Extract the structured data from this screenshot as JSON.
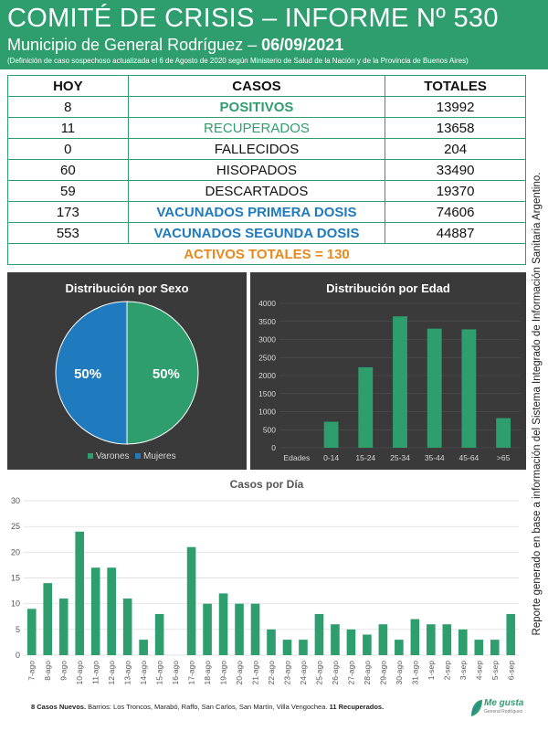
{
  "header": {
    "title": "COMITÉ DE CRISIS – INFORME Nº 530",
    "subtitle_prefix": "Municipio de General Rodríguez – ",
    "date": "06/09/2021",
    "note": "(Definición de caso sospechoso actualizada el 6 de Agosto de 2020 según Ministerio de Salud de la Nación y de la Provincia de Buenos Aires)"
  },
  "table": {
    "headers": [
      "HOY",
      "CASOS",
      "TOTALES"
    ],
    "rows": [
      {
        "hoy": "8",
        "caso": "POSITIVOS",
        "total": "13992"
      },
      {
        "hoy": "11",
        "caso": "RECUPERADOS",
        "total": "13658"
      },
      {
        "hoy": "0",
        "caso": "FALLECIDOS",
        "total": "204"
      },
      {
        "hoy": "60",
        "caso": "HISOPADOS",
        "total": "33490"
      },
      {
        "hoy": "59",
        "caso": "DESCARTADOS",
        "total": "19370"
      },
      {
        "hoy": "173",
        "caso": "VACUNADOS PRIMERA DOSIS",
        "total": "74606"
      },
      {
        "hoy": "553",
        "caso": "VACUNADOS SEGUNDA DOSIS",
        "total": "44887"
      }
    ],
    "activos": "ACTIVOS TOTALES = 130"
  },
  "side_text": "Reporte generado en base a información del Sistema Integrado de Información Sanitaria Argentino.",
  "footer": {
    "bold": "8 Casos Nuevos.",
    "text": " Barrios: Los Troncos, Marabó, Raffo, San Carlos, San Martín, Villa Vengochea. ",
    "bold2": "11 Recuperados."
  },
  "logo": {
    "text": "Me gusta",
    "sub": "General Rodríguez"
  },
  "colors": {
    "green": "#2f9e6e",
    "blue": "#1f7bbd",
    "orange": "#e8891c",
    "panel": "#3a3a3a"
  },
  "chart_data": [
    {
      "type": "pie",
      "title": "Distribución por Sexo",
      "labels": [
        "Varones",
        "Mujeres"
      ],
      "values": [
        50,
        50
      ],
      "data_labels": [
        "50%",
        "50%"
      ],
      "colors": [
        "#2f9e6e",
        "#1f7bbd"
      ],
      "legend": "bottom"
    },
    {
      "type": "bar",
      "title": "Distribución por Edad",
      "categories": [
        "0-14",
        "15-24",
        "25-34",
        "35-44",
        "45-64",
        ">65"
      ],
      "axis_label": "Edades",
      "values": [
        720,
        2230,
        3640,
        3300,
        3280,
        820
      ],
      "ylim": [
        0,
        4000
      ],
      "yticks": [
        0,
        500,
        1000,
        1500,
        2000,
        2500,
        3000,
        3500,
        4000
      ],
      "grid": true
    },
    {
      "type": "bar",
      "title": "Casos por Día",
      "categories": [
        "7-ago",
        "8-ago",
        "9-ago",
        "10-ago",
        "11-ago",
        "12-ago",
        "13-ago",
        "14-ago",
        "15-ago",
        "16-ago",
        "17-ago",
        "18-ago",
        "19-ago",
        "20-ago",
        "21-ago",
        "22-ago",
        "23-ago",
        "24-ago",
        "25-ago",
        "26-ago",
        "27-ago",
        "28-ago",
        "29-ago",
        "30-ago",
        "31-ago",
        "1-sep",
        "2-sep",
        "3-sep",
        "4-sep",
        "5-sep",
        "6-sep"
      ],
      "values": [
        9,
        14,
        11,
        24,
        17,
        17,
        11,
        3,
        8,
        0,
        21,
        10,
        12,
        10,
        10,
        5,
        3,
        3,
        8,
        6,
        5,
        4,
        6,
        3,
        7,
        6,
        6,
        5,
        3,
        3,
        8
      ],
      "ylim": [
        0,
        30
      ],
      "yticks": [
        0,
        5,
        10,
        15,
        20,
        25,
        30
      ],
      "grid": true
    }
  ]
}
